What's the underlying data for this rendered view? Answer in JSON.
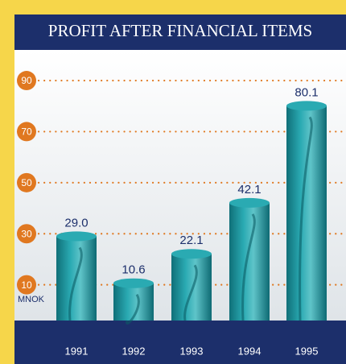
{
  "chart_data": {
    "type": "bar",
    "title": "PROFIT AFTER FINANCIAL ITEMS",
    "unit": "MNOK",
    "categories": [
      "1991",
      "1992",
      "1993",
      "1994",
      "1995"
    ],
    "values": [
      29.0,
      10.6,
      22.1,
      42.1,
      80.1
    ],
    "value_labels": [
      "29.0",
      "10.6",
      "22.1",
      "42.1",
      "80.1"
    ],
    "color": "#1f9aa2",
    "ylim": [
      -4,
      102
    ],
    "yticks": [
      10,
      30,
      50,
      70,
      90
    ],
    "grid": true
  }
}
